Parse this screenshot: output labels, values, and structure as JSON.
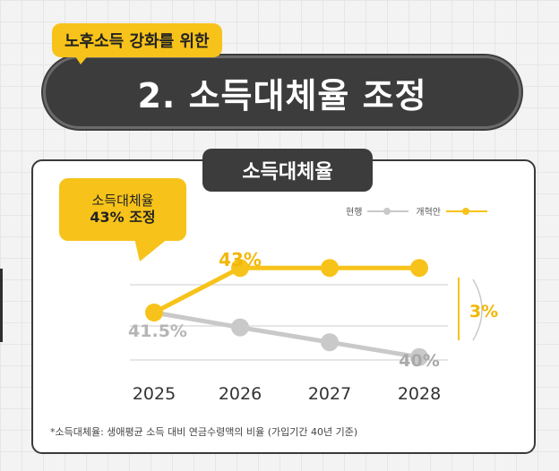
{
  "header": {
    "subtitle": "노후소득 강화를 위한",
    "title": "2. 소득대체율 조정"
  },
  "card": {
    "tab_label": "소득대체율"
  },
  "callout": {
    "line1": "소득대체율",
    "line2": "43% 조정"
  },
  "footnote": "*소득대체율: 생애평균 소득 대비 연금수령액의 비율 (가입기간 40년 기준)",
  "colors": {
    "accent": "#f7c31a",
    "current": "#c9c9c9",
    "dark": "#3c3c3c"
  },
  "chart_data": {
    "type": "line",
    "x": [
      "2025",
      "2026",
      "2027",
      "2028"
    ],
    "series": [
      {
        "name": "현행",
        "values": [
          41.5,
          41.0,
          40.5,
          40.0
        ],
        "color": "#c9c9c9"
      },
      {
        "name": "개혁안",
        "values": [
          41.5,
          43,
          43,
          43
        ],
        "color": "#f7c31a"
      }
    ],
    "data_labels": {
      "start": "41.5%",
      "reform": "43%",
      "current_end": "40%",
      "difference": "3%"
    },
    "ylim": [
      39,
      44
    ],
    "grid": true,
    "legend": "top-right"
  }
}
